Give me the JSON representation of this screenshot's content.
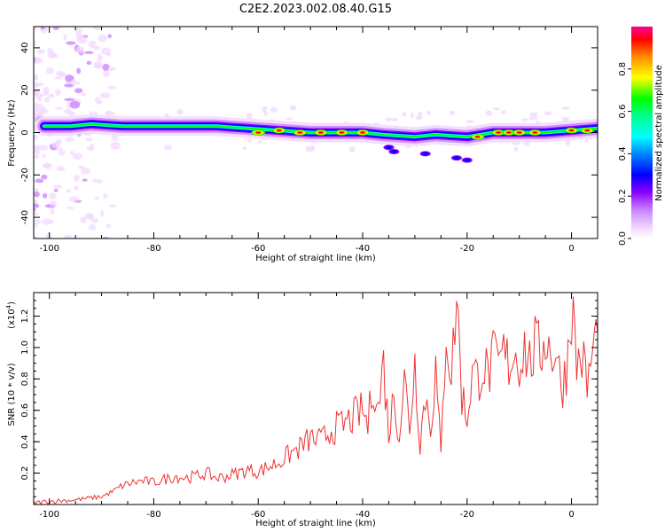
{
  "page_title": "C2E2.2023.002.08.40.G15",
  "colors": {
    "snr_line": "#ee3333",
    "axis": "#000000"
  },
  "chart_data": [
    {
      "type": "heatmap",
      "title": "C2E2.2023.002.08.40.G15",
      "xlabel": "Height of straight line (km)",
      "ylabel": "Frequency (Hz)",
      "xlim": [
        -103,
        5
      ],
      "ylim": [
        -50,
        50
      ],
      "xticks": [
        -100,
        -80,
        -60,
        -40,
        -20,
        0
      ],
      "yticks": [
        -40,
        -20,
        0,
        20,
        40
      ],
      "colorbar": {
        "label": "Normalized spectral amplitude",
        "range": [
          0,
          1
        ],
        "ticks": [
          "0.0",
          "0.2",
          "0.4",
          "0.6",
          "0.8"
        ],
        "colormap": [
          "#f2d9ff",
          "#cc88ff",
          "#8800ff",
          "#0000ff",
          "#00ffff",
          "#00ff00",
          "#ffff00",
          "#ff8800",
          "#ff0000",
          "#ff0099"
        ]
      },
      "ridge": [
        [
          -101,
          3
        ],
        [
          -96,
          3
        ],
        [
          -92,
          4
        ],
        [
          -86,
          3
        ],
        [
          -80,
          3
        ],
        [
          -74,
          3
        ],
        [
          -68,
          3
        ],
        [
          -62,
          2
        ],
        [
          -56,
          1
        ],
        [
          -50,
          0
        ],
        [
          -44,
          0
        ],
        [
          -40,
          0
        ],
        [
          -36,
          -1
        ],
        [
          -30,
          -2
        ],
        [
          -26,
          -1
        ],
        [
          -20,
          -2
        ],
        [
          -15,
          0
        ],
        [
          -10,
          0
        ],
        [
          -5,
          0
        ],
        [
          0,
          1
        ],
        [
          5,
          2
        ]
      ],
      "peaks": [
        [
          -60,
          0
        ],
        [
          -56,
          1
        ],
        [
          -52,
          0
        ],
        [
          -48,
          0
        ],
        [
          -44,
          0
        ],
        [
          -40,
          0
        ],
        [
          -18,
          -2
        ],
        [
          -14,
          0
        ],
        [
          -12,
          0
        ],
        [
          -10,
          0
        ],
        [
          -7,
          0
        ],
        [
          0,
          1
        ],
        [
          3,
          1
        ]
      ],
      "off_ridge": [
        [
          -35,
          -7
        ],
        [
          -34,
          -9
        ],
        [
          -28,
          -10
        ],
        [
          -22,
          -12
        ],
        [
          -20,
          -13
        ]
      ]
    },
    {
      "type": "line",
      "xlabel": "Height of straight line (km)",
      "ylabel": "SNR (10 * v/v)",
      "scale_label": "(x10",
      "scale_exponent": "4",
      "scale_close": ")",
      "xlim": [
        -103,
        5
      ],
      "ylim": [
        0,
        1.35
      ],
      "xticks": [
        -100,
        -80,
        -60,
        -40,
        -20,
        0
      ],
      "yticks": [
        "0.2",
        "0.4",
        "0.6",
        "0.8",
        "1.0",
        "1.2"
      ],
      "series": [
        {
          "x": [
            -103,
            -100,
            -95,
            -90,
            -88,
            -86,
            -84,
            -82,
            -80,
            -78,
            -76,
            -74,
            -72,
            -70,
            -68,
            -66,
            -64,
            -62,
            -60,
            -58,
            -56,
            -54,
            -52,
            -50,
            -48,
            -46,
            -44,
            -42,
            -40,
            -39,
            -38,
            -37,
            -36,
            -35,
            -34,
            -33,
            -32,
            -31,
            -30,
            -29,
            -28,
            -27,
            -26,
            -25,
            -24,
            -23,
            -22,
            -21,
            -20,
            -19,
            -18,
            -17,
            -16,
            -15,
            -14,
            -13,
            -12,
            -11,
            -10,
            -9,
            -8,
            -7,
            -6,
            -5,
            -4,
            -3,
            -2,
            -1,
            0,
            1,
            2,
            3,
            4,
            5
          ],
          "y": [
            0.01,
            0.02,
            0.03,
            0.05,
            0.08,
            0.12,
            0.14,
            0.15,
            0.14,
            0.16,
            0.18,
            0.17,
            0.18,
            0.2,
            0.17,
            0.18,
            0.2,
            0.22,
            0.21,
            0.24,
            0.27,
            0.32,
            0.36,
            0.42,
            0.4,
            0.48,
            0.5,
            0.55,
            0.6,
            0.5,
            0.8,
            0.6,
            0.9,
            0.45,
            0.7,
            0.45,
            0.8,
            0.5,
            0.9,
            0.4,
            0.7,
            0.5,
            0.85,
            0.3,
            1.15,
            0.8,
            1.35,
            0.7,
            0.55,
            0.85,
            0.8,
            0.9,
            0.82,
            0.92,
            0.88,
            0.95,
            0.9,
            0.98,
            0.92,
            1.0,
            0.9,
            1.0,
            0.95,
            1.1,
            0.95,
            1.0,
            0.75,
            0.85,
            1.3,
            0.9,
            0.95,
            0.75,
            0.95,
            1.1
          ]
        }
      ]
    }
  ]
}
